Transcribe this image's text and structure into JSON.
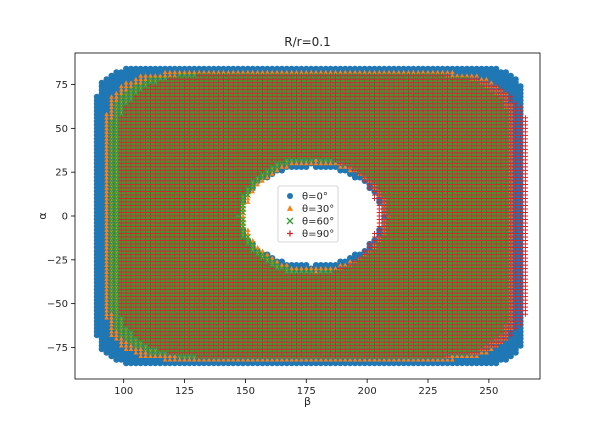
{
  "chart_data": {
    "type": "scatter",
    "title": "R/r=0.1",
    "xlabel": "β",
    "ylabel": "α",
    "xlim": [
      80,
      271
    ],
    "ylim": [
      -93,
      93
    ],
    "xticks": [
      100,
      125,
      150,
      175,
      200,
      225,
      250
    ],
    "yticks": [
      -75,
      -50,
      -25,
      0,
      25,
      50,
      75
    ],
    "grid": false,
    "legend_position": "center",
    "grid_step": 2,
    "series": [
      {
        "name": "θ=0°",
        "marker": "circle",
        "color": "#1f77b4",
        "outer": {
          "x_range": [
            89,
            264
          ],
          "y_range": [
            -85,
            85
          ],
          "corner_round": 0.18
        },
        "hole": {
          "x_range": [
            148,
            206
          ],
          "y_range": [
            -28,
            28
          ]
        }
      },
      {
        "name": "θ=30°",
        "marker": "triangle",
        "color": "#ff7f0e",
        "outer": {
          "x_range": [
            93,
            260
          ],
          "y_range": [
            -82,
            82
          ],
          "corner_round": 0.28
        },
        "hole": {
          "x_range": [
            150,
            207
          ],
          "y_range": [
            -30,
            30
          ]
        }
      },
      {
        "name": "θ=60°",
        "marker": "x",
        "color": "#2ca02c",
        "outer": {
          "x_range": [
            95,
            258
          ],
          "y_range": [
            -80,
            80
          ],
          "corner_round": 0.32
        },
        "hole": {
          "x_range": [
            149,
            209
          ],
          "y_range": [
            -32,
            32
          ]
        }
      },
      {
        "name": "θ=90°",
        "marker": "plus",
        "color": "#d62728",
        "outer": {
          "x_range": [
            98,
            266
          ],
          "y_range": [
            -80,
            80
          ],
          "corner_round": 0.38
        },
        "hole": {
          "x_range": [
            147,
            204
          ],
          "y_range": [
            -34,
            34
          ]
        }
      }
    ]
  }
}
